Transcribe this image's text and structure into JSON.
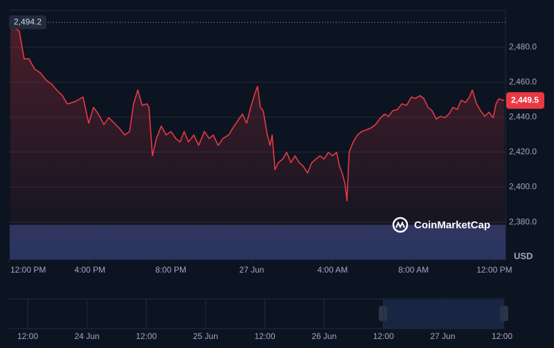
{
  "chart_data": {
    "type": "line",
    "color": "#ea3943",
    "x": [
      0.07,
      0.24,
      0.51,
      0.75,
      0.99,
      1.27,
      1.54,
      1.82,
      2.12,
      2.36,
      2.64,
      2.88,
      3.15,
      3.39,
      3.66,
      3.94,
      4.18,
      4.42,
      4.69,
      4.93,
      5.21,
      5.45,
      5.72,
      5.96,
      6.16,
      6.37,
      6.58,
      6.82,
      6.92,
      7.09,
      7.29,
      7.53,
      7.77,
      8.01,
      8.25,
      8.46,
      8.66,
      8.87,
      9.14,
      9.38,
      9.66,
      9.9,
      10.1,
      10.34,
      10.58,
      10.86,
      11.06,
      11.3,
      11.54,
      11.75,
      11.95,
      12.16,
      12.29,
      12.43,
      12.57,
      12.77,
      12.91,
      13.01,
      13.15,
      13.32,
      13.53,
      13.73,
      13.94,
      14.14,
      14.35,
      14.55,
      14.76,
      14.97,
      15.17,
      15.38,
      15.58,
      15.79,
      15.99,
      16.2,
      16.34,
      16.47,
      16.61,
      16.71,
      16.82,
      17.02,
      17.23,
      17.43,
      17.64,
      17.88,
      18.12,
      18.32,
      18.56,
      18.77,
      18.97,
      19.21,
      19.42,
      19.66,
      19.9,
      20.1,
      20.31,
      20.51,
      20.72,
      20.92,
      21.13,
      21.34,
      21.54,
      21.75,
      21.95,
      22.16,
      22.36,
      22.57,
      22.77,
      22.91,
      23.12,
      23.32,
      23.53,
      23.73,
      23.94,
      24.08,
      24.21,
      24.49
    ],
    "values": [
      2494.2,
      2491.1,
      2489.1,
      2473.3,
      2473.3,
      2467.4,
      2465.4,
      2461.4,
      2458.7,
      2455.5,
      2452.3,
      2447.6,
      2448.4,
      2449.6,
      2451.5,
      2436.5,
      2445.6,
      2441.7,
      2435.7,
      2439.7,
      2436.5,
      2433.7,
      2429.8,
      2431.8,
      2447.6,
      2455.5,
      2446.8,
      2447.6,
      2445.6,
      2417.9,
      2427.8,
      2434.9,
      2429.8,
      2431.8,
      2427.8,
      2425.8,
      2431.8,
      2425.8,
      2429.8,
      2423.9,
      2431.8,
      2427.8,
      2429.8,
      2423.9,
      2427.8,
      2429.8,
      2433.7,
      2437.7,
      2441.7,
      2436.5,
      2445.6,
      2453.5,
      2457.5,
      2445.6,
      2443.6,
      2429.8,
      2423.9,
      2429.8,
      2410.0,
      2414.0,
      2416.0,
      2419.9,
      2414.0,
      2417.9,
      2414.0,
      2412.0,
      2408.1,
      2414.0,
      2416.0,
      2417.9,
      2416.0,
      2419.9,
      2417.9,
      2419.9,
      2412.0,
      2408.1,
      2402.1,
      2392.2,
      2419.9,
      2425.8,
      2429.8,
      2431.8,
      2432.6,
      2433.7,
      2435.7,
      2438.9,
      2441.7,
      2440.5,
      2443.6,
      2444.4,
      2447.6,
      2446.8,
      2451.5,
      2450.7,
      2452.3,
      2450.7,
      2445.6,
      2443.6,
      2438.9,
      2440.5,
      2439.7,
      2441.7,
      2445.6,
      2444.4,
      2449.6,
      2448.4,
      2451.5,
      2455.5,
      2447.6,
      2443.6,
      2440.5,
      2442.8,
      2439.7,
      2447.6,
      2450.4,
      2449.5
    ],
    "xlim": [
      0,
      24.55
    ],
    "xticks": [
      {
        "value": 0,
        "label": "12:00 PM"
      },
      {
        "value": 4,
        "label": "4:00 PM"
      },
      {
        "value": 8,
        "label": "8:00 PM"
      },
      {
        "value": 12,
        "label": "27 Jun"
      },
      {
        "value": 16,
        "label": "4:00 AM"
      },
      {
        "value": 20,
        "label": "8:00 AM"
      },
      {
        "value": 24,
        "label": "12:00 PM"
      }
    ],
    "ylim": [
      2358.7,
      2501
    ],
    "yticks": [
      {
        "value": 2380,
        "label": "2,380.0"
      },
      {
        "value": 2400,
        "label": "2,400.0"
      },
      {
        "value": 2420,
        "label": "2,420.0"
      },
      {
        "value": 2440,
        "label": "2,440.0"
      },
      {
        "value": 2460,
        "label": "2,460.0"
      },
      {
        "value": 2480,
        "label": "2,480.0"
      }
    ],
    "grid": true,
    "high_label": {
      "value": 2494.2,
      "label": "2,494.2"
    },
    "last_label": {
      "value": 2449.5,
      "label": "2,449.5"
    },
    "currency": "USD",
    "brand": "CoinMarketCap",
    "navigator": {
      "labels": [
        "12:00",
        "24 Jun",
        "12:00",
        "25 Jun",
        "12:00",
        "26 Jun",
        "12:00",
        "27 Jun",
        "12:00"
      ]
    }
  }
}
